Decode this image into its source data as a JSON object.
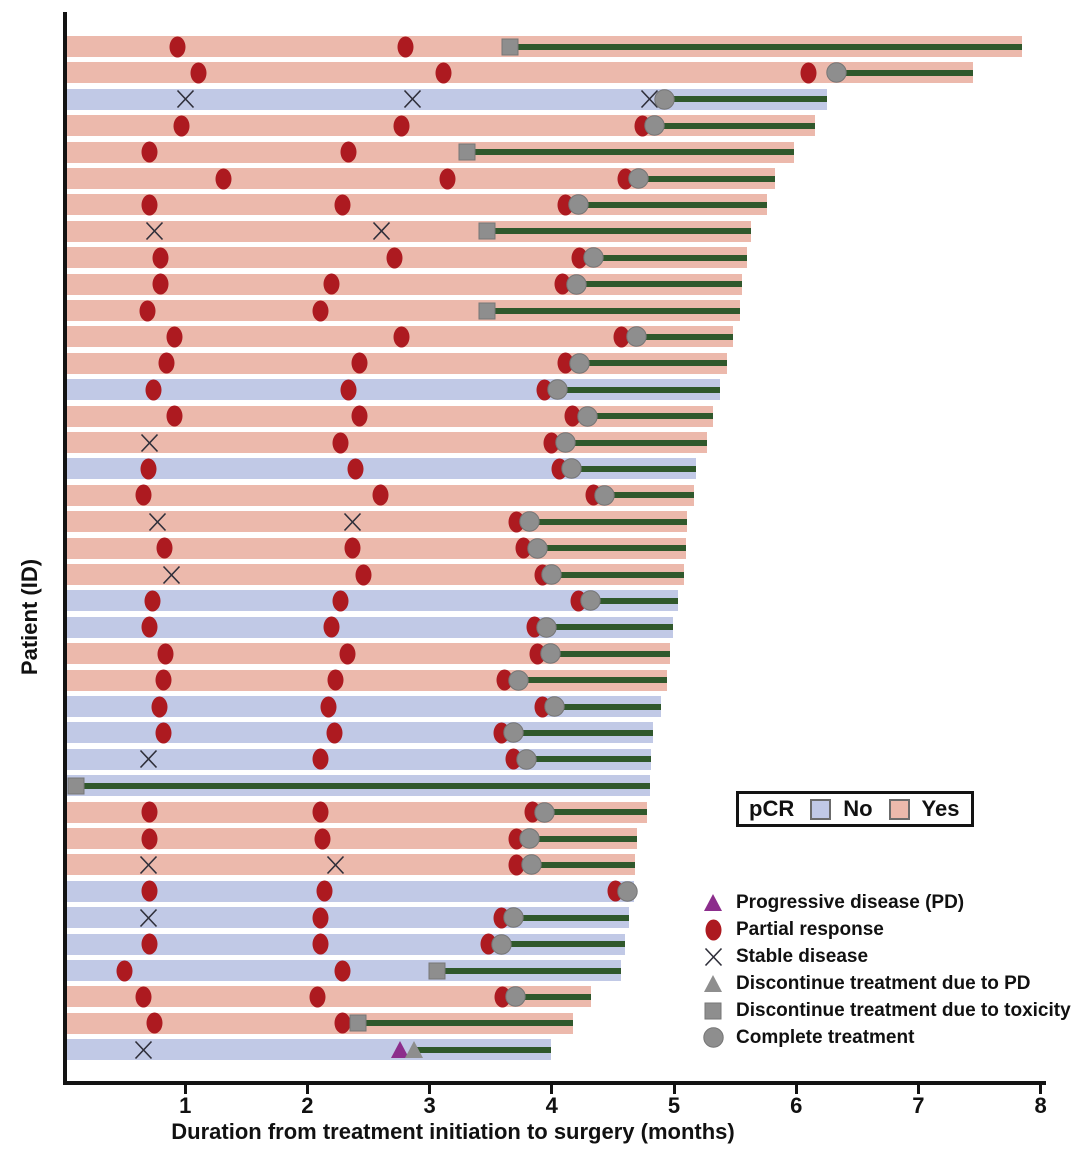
{
  "chart_data": {
    "type": "bar",
    "subtype": "swimmer-plot",
    "title": "",
    "xlabel": "Duration from treatment initiation to surgery (months)",
    "ylabel": "Patient (ID)",
    "xlim": [
      0,
      8
    ],
    "xticks": [
      1,
      2,
      3,
      4,
      5,
      6,
      7,
      8
    ],
    "grid": false,
    "legend_pcr": {
      "title": "pCR",
      "items": [
        {
          "label": "No",
          "key": "no"
        },
        {
          "label": "Yes",
          "key": "yes"
        }
      ]
    },
    "legend_markers": [
      {
        "type": "PD",
        "label": "Progressive disease (PD)"
      },
      {
        "type": "PR",
        "label": "Partial response"
      },
      {
        "type": "SD",
        "label": "Stable disease"
      },
      {
        "type": "DPD",
        "label": "Discontinue treatment due to PD"
      },
      {
        "type": "TOX",
        "label": "Discontinue treatment due to toxicity"
      },
      {
        "type": "COMP",
        "label": "Complete treatment"
      }
    ],
    "colors": {
      "pcr_yes": "#ecb9ac",
      "pcr_no": "#c1c9e6",
      "line": "#30582c",
      "pr": "#ad1a20",
      "gray": "#8e8e8e",
      "gray_stroke": "#767676",
      "pd": "#8c2d8c",
      "sd": "#2f2f3a",
      "axis": "#131313"
    },
    "patients": [
      {
        "pcr": "Yes",
        "end": 7.85,
        "line_start": 3.66,
        "events": [
          [
            "PR",
            0.94
          ],
          [
            "PR",
            2.8
          ],
          [
            "TOX",
            3.66
          ]
        ]
      },
      {
        "pcr": "Yes",
        "end": 7.45,
        "line_start": 6.33,
        "events": [
          [
            "PR",
            1.11
          ],
          [
            "PR",
            3.11
          ],
          [
            "PR",
            6.1
          ],
          [
            "COMP",
            6.33
          ]
        ]
      },
      {
        "pcr": "No",
        "end": 6.25,
        "line_start": 4.92,
        "events": [
          [
            "SD",
            1.0
          ],
          [
            "SD",
            2.86
          ],
          [
            "SD",
            4.8
          ],
          [
            "COMP",
            4.92
          ]
        ]
      },
      {
        "pcr": "Yes",
        "end": 6.15,
        "line_start": 4.84,
        "events": [
          [
            "PR",
            0.97
          ],
          [
            "PR",
            2.77
          ],
          [
            "PR",
            4.74
          ],
          [
            "COMP",
            4.84
          ]
        ]
      },
      {
        "pcr": "Yes",
        "end": 5.98,
        "line_start": 3.31,
        "events": [
          [
            "PR",
            0.71
          ],
          [
            "PR",
            2.34
          ],
          [
            "TOX",
            3.31
          ]
        ]
      },
      {
        "pcr": "Yes",
        "end": 5.83,
        "line_start": 4.71,
        "events": [
          [
            "PR",
            1.31
          ],
          [
            "PR",
            3.15
          ],
          [
            "PR",
            4.6
          ],
          [
            "COMP",
            4.71
          ]
        ]
      },
      {
        "pcr": "Yes",
        "end": 5.76,
        "line_start": 4.22,
        "events": [
          [
            "PR",
            0.71
          ],
          [
            "PR",
            2.29
          ],
          [
            "PR",
            4.11
          ],
          [
            "COMP",
            4.22
          ]
        ]
      },
      {
        "pcr": "Yes",
        "end": 5.63,
        "line_start": 3.47,
        "events": [
          [
            "SD",
            0.75
          ],
          [
            "SD",
            2.61
          ],
          [
            "TOX",
            3.47
          ]
        ]
      },
      {
        "pcr": "Yes",
        "end": 5.6,
        "line_start": 4.34,
        "events": [
          [
            "PR",
            0.8
          ],
          [
            "PR",
            2.71
          ],
          [
            "PR",
            4.23
          ],
          [
            "COMP",
            4.34
          ]
        ]
      },
      {
        "pcr": "Yes",
        "end": 5.56,
        "line_start": 4.2,
        "events": [
          [
            "PR",
            0.8
          ],
          [
            "PR",
            2.2
          ],
          [
            "PR",
            4.09
          ],
          [
            "COMP",
            4.2
          ]
        ]
      },
      {
        "pcr": "Yes",
        "end": 5.54,
        "line_start": 3.47,
        "events": [
          [
            "PR",
            0.69
          ],
          [
            "PR",
            2.11
          ],
          [
            "TOX",
            3.47
          ]
        ]
      },
      {
        "pcr": "Yes",
        "end": 5.48,
        "line_start": 4.69,
        "events": [
          [
            "PR",
            0.91
          ],
          [
            "PR",
            2.77
          ],
          [
            "PR",
            4.57
          ],
          [
            "COMP",
            4.69
          ]
        ]
      },
      {
        "pcr": "Yes",
        "end": 5.43,
        "line_start": 4.23,
        "events": [
          [
            "PR",
            0.85
          ],
          [
            "PR",
            2.43
          ],
          [
            "PR",
            4.11
          ],
          [
            "COMP",
            4.23
          ]
        ]
      },
      {
        "pcr": "No",
        "end": 5.38,
        "line_start": 4.05,
        "events": [
          [
            "PR",
            0.74
          ],
          [
            "PR",
            2.34
          ],
          [
            "PR",
            3.94
          ],
          [
            "COMP",
            4.05
          ]
        ]
      },
      {
        "pcr": "Yes",
        "end": 5.32,
        "line_start": 4.29,
        "events": [
          [
            "PR",
            0.91
          ],
          [
            "PR",
            2.43
          ],
          [
            "PR",
            4.17
          ],
          [
            "COMP",
            4.29
          ]
        ]
      },
      {
        "pcr": "Yes",
        "end": 5.27,
        "line_start": 4.11,
        "events": [
          [
            "SD",
            0.71
          ],
          [
            "PR",
            2.27
          ],
          [
            "PR",
            4.0
          ],
          [
            "COMP",
            4.11
          ]
        ]
      },
      {
        "pcr": "No",
        "end": 5.18,
        "line_start": 4.16,
        "events": [
          [
            "PR",
            0.7
          ],
          [
            "PR",
            2.39
          ],
          [
            "PR",
            4.06
          ],
          [
            "COMP",
            4.16
          ]
        ]
      },
      {
        "pcr": "Yes",
        "end": 5.16,
        "line_start": 4.43,
        "events": [
          [
            "PR",
            0.66
          ],
          [
            "PR",
            2.6
          ],
          [
            "PR",
            4.34
          ],
          [
            "COMP",
            4.43
          ]
        ]
      },
      {
        "pcr": "Yes",
        "end": 5.11,
        "line_start": 3.82,
        "events": [
          [
            "SD",
            0.77
          ],
          [
            "SD",
            2.37
          ],
          [
            "PR",
            3.71
          ],
          [
            "COMP",
            3.82
          ]
        ]
      },
      {
        "pcr": "Yes",
        "end": 5.1,
        "line_start": 3.88,
        "events": [
          [
            "PR",
            0.83
          ],
          [
            "PR",
            2.37
          ],
          [
            "PR",
            3.77
          ],
          [
            "COMP",
            3.88
          ]
        ]
      },
      {
        "pcr": "Yes",
        "end": 5.08,
        "line_start": 4.0,
        "events": [
          [
            "SD",
            0.89
          ],
          [
            "PR",
            2.46
          ],
          [
            "PR",
            3.92
          ],
          [
            "COMP",
            4.0
          ]
        ]
      },
      {
        "pcr": "No",
        "end": 5.03,
        "line_start": 4.32,
        "events": [
          [
            "PR",
            0.73
          ],
          [
            "PR",
            2.27
          ],
          [
            "PR",
            4.22
          ],
          [
            "COMP",
            4.32
          ]
        ]
      },
      {
        "pcr": "No",
        "end": 4.99,
        "line_start": 3.96,
        "events": [
          [
            "PR",
            0.71
          ],
          [
            "PR",
            2.2
          ],
          [
            "PR",
            3.86
          ],
          [
            "COMP",
            3.96
          ]
        ]
      },
      {
        "pcr": "Yes",
        "end": 4.97,
        "line_start": 3.99,
        "events": [
          [
            "PR",
            0.84
          ],
          [
            "PR",
            2.33
          ],
          [
            "PR",
            3.88
          ],
          [
            "COMP",
            3.99
          ]
        ]
      },
      {
        "pcr": "Yes",
        "end": 4.94,
        "line_start": 3.73,
        "events": [
          [
            "PR",
            0.82
          ],
          [
            "PR",
            2.23
          ],
          [
            "PR",
            3.61
          ],
          [
            "COMP",
            3.73
          ]
        ]
      },
      {
        "pcr": "No",
        "end": 4.89,
        "line_start": 4.02,
        "events": [
          [
            "PR",
            0.79
          ],
          [
            "PR",
            2.17
          ],
          [
            "PR",
            3.92
          ],
          [
            "COMP",
            4.02
          ]
        ]
      },
      {
        "pcr": "No",
        "end": 4.83,
        "line_start": 3.69,
        "events": [
          [
            "PR",
            0.82
          ],
          [
            "PR",
            2.22
          ],
          [
            "PR",
            3.59
          ],
          [
            "COMP",
            3.69
          ]
        ]
      },
      {
        "pcr": "No",
        "end": 4.81,
        "line_start": 3.79,
        "events": [
          [
            "SD",
            0.7
          ],
          [
            "PR",
            2.11
          ],
          [
            "PR",
            3.69
          ],
          [
            "COMP",
            3.79
          ]
        ]
      },
      {
        "pcr": "No",
        "end": 4.8,
        "line_start": 0.11,
        "events": [
          [
            "TOX",
            0.11
          ]
        ]
      },
      {
        "pcr": "Yes",
        "end": 4.78,
        "line_start": 3.94,
        "events": [
          [
            "PR",
            0.71
          ],
          [
            "PR",
            2.11
          ],
          [
            "PR",
            3.84
          ],
          [
            "COMP",
            3.94
          ]
        ]
      },
      {
        "pcr": "Yes",
        "end": 4.7,
        "line_start": 3.82,
        "events": [
          [
            "PR",
            0.71
          ],
          [
            "PR",
            2.12
          ],
          [
            "PR",
            3.71
          ],
          [
            "COMP",
            3.82
          ]
        ]
      },
      {
        "pcr": "Yes",
        "end": 4.68,
        "line_start": 3.83,
        "events": [
          [
            "SD",
            0.7
          ],
          [
            "SD",
            2.23
          ],
          [
            "PR",
            3.71
          ],
          [
            "COMP",
            3.83
          ]
        ]
      },
      {
        "pcr": "No",
        "end": 4.67,
        "line_start": 4.62,
        "events": [
          [
            "PR",
            0.71
          ],
          [
            "PR",
            2.14
          ],
          [
            "PR",
            4.52
          ],
          [
            "COMP",
            4.62
          ]
        ]
      },
      {
        "pcr": "No",
        "end": 4.63,
        "line_start": 3.69,
        "events": [
          [
            "SD",
            0.7
          ],
          [
            "PR",
            2.11
          ],
          [
            "PR",
            3.59
          ],
          [
            "COMP",
            3.69
          ]
        ]
      },
      {
        "pcr": "No",
        "end": 4.6,
        "line_start": 3.59,
        "events": [
          [
            "PR",
            0.71
          ],
          [
            "PR",
            2.11
          ],
          [
            "PR",
            3.48
          ],
          [
            "COMP",
            3.59
          ]
        ]
      },
      {
        "pcr": "No",
        "end": 4.57,
        "line_start": 3.06,
        "events": [
          [
            "PR",
            0.5
          ],
          [
            "PR",
            2.29
          ],
          [
            "TOX",
            3.06
          ]
        ]
      },
      {
        "pcr": "Yes",
        "end": 4.32,
        "line_start": 3.7,
        "events": [
          [
            "PR",
            0.66
          ],
          [
            "PR",
            2.08
          ],
          [
            "PR",
            3.6
          ],
          [
            "COMP",
            3.7
          ]
        ]
      },
      {
        "pcr": "Yes",
        "end": 4.17,
        "line_start": 2.41,
        "events": [
          [
            "PR",
            0.75
          ],
          [
            "PR",
            2.29
          ],
          [
            "TOX",
            2.41
          ]
        ]
      },
      {
        "pcr": "No",
        "end": 3.99,
        "line_start": 2.87,
        "events": [
          [
            "SD",
            0.66
          ],
          [
            "PD",
            2.76
          ],
          [
            "DPD",
            2.87
          ]
        ]
      }
    ]
  }
}
